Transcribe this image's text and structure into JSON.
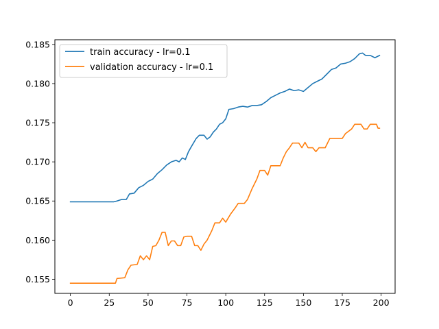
{
  "chart_data": {
    "type": "line",
    "title": "",
    "xlabel": "",
    "ylabel": "",
    "xlim": [
      -10,
      209
    ],
    "ylim": [
      0.1532,
      0.1856
    ],
    "x_ticks": [
      0,
      25,
      50,
      75,
      100,
      125,
      150,
      175,
      200
    ],
    "y_ticks": [
      0.155,
      0.16,
      0.165,
      0.17,
      0.175,
      0.18,
      0.185
    ],
    "y_tick_labels": [
      "0.155",
      "0.160",
      "0.165",
      "0.170",
      "0.175",
      "0.180",
      "0.185"
    ],
    "grid": false,
    "legend_position": "top-left",
    "series": [
      {
        "name": "train accuracy - lr=0.1",
        "color": "#1f77b4",
        "points": [
          [
            0,
            0.1649
          ],
          [
            10,
            0.1649
          ],
          [
            20,
            0.1649
          ],
          [
            28,
            0.1649
          ],
          [
            30,
            0.165
          ],
          [
            33,
            0.1652
          ],
          [
            36,
            0.1652
          ],
          [
            38,
            0.1659
          ],
          [
            41,
            0.166
          ],
          [
            44,
            0.1667
          ],
          [
            47,
            0.167
          ],
          [
            50,
            0.1675
          ],
          [
            53,
            0.1678
          ],
          [
            56,
            0.1685
          ],
          [
            59,
            0.169
          ],
          [
            62,
            0.1696
          ],
          [
            65,
            0.17
          ],
          [
            68,
            0.1702
          ],
          [
            70,
            0.17
          ],
          [
            72,
            0.1705
          ],
          [
            74,
            0.1703
          ],
          [
            76,
            0.1713
          ],
          [
            78,
            0.172
          ],
          [
            81,
            0.173
          ],
          [
            83,
            0.1734
          ],
          [
            86,
            0.1734
          ],
          [
            88,
            0.1729
          ],
          [
            90,
            0.1732
          ],
          [
            92,
            0.1738
          ],
          [
            94,
            0.1742
          ],
          [
            96,
            0.1748
          ],
          [
            98,
            0.175
          ],
          [
            100,
            0.1755
          ],
          [
            102,
            0.1767
          ],
          [
            105,
            0.1768
          ],
          [
            108,
            0.177
          ],
          [
            111,
            0.1771
          ],
          [
            114,
            0.177
          ],
          [
            117,
            0.1772
          ],
          [
            120,
            0.1772
          ],
          [
            123,
            0.1773
          ],
          [
            126,
            0.1777
          ],
          [
            129,
            0.1782
          ],
          [
            132,
            0.1785
          ],
          [
            135,
            0.1788
          ],
          [
            138,
            0.179
          ],
          [
            141,
            0.1793
          ],
          [
            144,
            0.1791
          ],
          [
            147,
            0.1792
          ],
          [
            150,
            0.179
          ],
          [
            153,
            0.1795
          ],
          [
            156,
            0.18
          ],
          [
            159,
            0.1803
          ],
          [
            162,
            0.1806
          ],
          [
            165,
            0.1812
          ],
          [
            168,
            0.1818
          ],
          [
            171,
            0.182
          ],
          [
            174,
            0.1825
          ],
          [
            177,
            0.1826
          ],
          [
            180,
            0.1828
          ],
          [
            183,
            0.1832
          ],
          [
            186,
            0.1838
          ],
          [
            188,
            0.1839
          ],
          [
            190,
            0.1836
          ],
          [
            193,
            0.1836
          ],
          [
            196,
            0.1833
          ],
          [
            199,
            0.1836
          ]
        ]
      },
      {
        "name": "validation accuracy - lr=0.1",
        "color": "#ff7f0e",
        "points": [
          [
            0,
            0.1545
          ],
          [
            10,
            0.1545
          ],
          [
            20,
            0.1545
          ],
          [
            29,
            0.1545
          ],
          [
            30,
            0.1551
          ],
          [
            35,
            0.1552
          ],
          [
            37,
            0.1562
          ],
          [
            39,
            0.1568
          ],
          [
            43,
            0.1569
          ],
          [
            45,
            0.158
          ],
          [
            47,
            0.1575
          ],
          [
            49,
            0.158
          ],
          [
            51,
            0.1575
          ],
          [
            53,
            0.1592
          ],
          [
            55,
            0.1593
          ],
          [
            57,
            0.16
          ],
          [
            59,
            0.161
          ],
          [
            61,
            0.161
          ],
          [
            63,
            0.1593
          ],
          [
            65,
            0.1599
          ],
          [
            67,
            0.1599
          ],
          [
            69,
            0.1593
          ],
          [
            71,
            0.1593
          ],
          [
            73,
            0.1604
          ],
          [
            75,
            0.1605
          ],
          [
            78,
            0.1605
          ],
          [
            80,
            0.1593
          ],
          [
            82,
            0.1593
          ],
          [
            84,
            0.1587
          ],
          [
            86,
            0.1595
          ],
          [
            88,
            0.16
          ],
          [
            91,
            0.1612
          ],
          [
            93,
            0.1622
          ],
          [
            96,
            0.1622
          ],
          [
            98,
            0.1628
          ],
          [
            100,
            0.1623
          ],
          [
            103,
            0.1633
          ],
          [
            106,
            0.1641
          ],
          [
            108,
            0.1647
          ],
          [
            112,
            0.1647
          ],
          [
            114,
            0.1652
          ],
          [
            117,
            0.1666
          ],
          [
            120,
            0.1678
          ],
          [
            122,
            0.1689
          ],
          [
            125,
            0.1689
          ],
          [
            127,
            0.1683
          ],
          [
            129,
            0.1695
          ],
          [
            132,
            0.1695
          ],
          [
            135,
            0.1695
          ],
          [
            137,
            0.1705
          ],
          [
            139,
            0.1713
          ],
          [
            141,
            0.1718
          ],
          [
            143,
            0.1724
          ],
          [
            147,
            0.1724
          ],
          [
            149,
            0.1718
          ],
          [
            151,
            0.1725
          ],
          [
            153,
            0.1718
          ],
          [
            156,
            0.1718
          ],
          [
            158,
            0.1713
          ],
          [
            160,
            0.1718
          ],
          [
            164,
            0.1718
          ],
          [
            167,
            0.173
          ],
          [
            170,
            0.173
          ],
          [
            175,
            0.173
          ],
          [
            177,
            0.1736
          ],
          [
            181,
            0.1742
          ],
          [
            183,
            0.1748
          ],
          [
            187,
            0.1748
          ],
          [
            189,
            0.1742
          ],
          [
            191,
            0.1742
          ],
          [
            193,
            0.1748
          ],
          [
            197,
            0.1748
          ],
          [
            198,
            0.1743
          ],
          [
            199,
            0.1743
          ]
        ]
      }
    ]
  }
}
